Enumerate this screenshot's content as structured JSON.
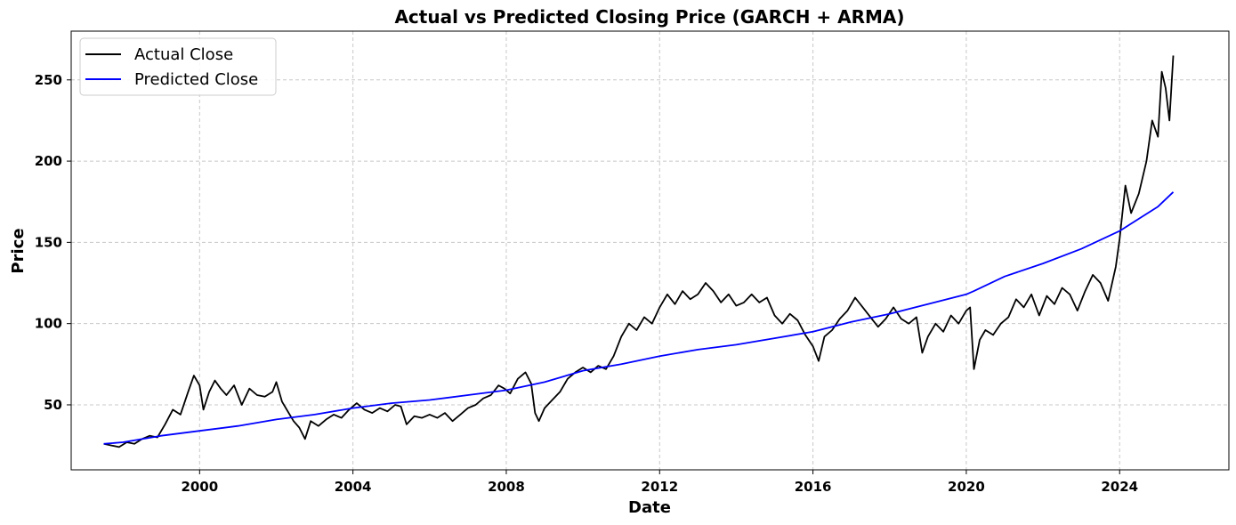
{
  "chart_data": {
    "type": "line",
    "title": "Actual vs Predicted Closing Price (GARCH + ARMA)",
    "xlabel": "Date",
    "ylabel": "Price",
    "xlim": [
      1996.65,
      2026.85
    ],
    "ylim": [
      10,
      280
    ],
    "x_ticks": [
      2000,
      2004,
      2008,
      2012,
      2016,
      2020,
      2024
    ],
    "x_tick_labels": [
      "2000",
      "2004",
      "2008",
      "2012",
      "2016",
      "2020",
      "2024"
    ],
    "y_ticks": [
      50,
      100,
      150,
      200,
      250
    ],
    "y_tick_labels": [
      "50",
      "100",
      "150",
      "200",
      "250"
    ],
    "grid": true,
    "legend_position": "top-left",
    "series": [
      {
        "name": "Actual Close",
        "color": "#000000",
        "points": [
          [
            1997.5,
            26
          ],
          [
            1997.7,
            25
          ],
          [
            1997.9,
            24
          ],
          [
            1998.1,
            27
          ],
          [
            1998.3,
            26
          ],
          [
            1998.5,
            29
          ],
          [
            1998.7,
            31
          ],
          [
            1998.9,
            30
          ],
          [
            1999.1,
            38
          ],
          [
            1999.3,
            47
          ],
          [
            1999.5,
            44
          ],
          [
            1999.7,
            58
          ],
          [
            1999.85,
            68
          ],
          [
            2000.0,
            62
          ],
          [
            2000.1,
            47
          ],
          [
            2000.25,
            58
          ],
          [
            2000.4,
            65
          ],
          [
            2000.55,
            60
          ],
          [
            2000.7,
            56
          ],
          [
            2000.9,
            62
          ],
          [
            2001.1,
            50
          ],
          [
            2001.3,
            60
          ],
          [
            2001.5,
            56
          ],
          [
            2001.7,
            55
          ],
          [
            2001.9,
            58
          ],
          [
            2002.0,
            64
          ],
          [
            2002.15,
            52
          ],
          [
            2002.3,
            46
          ],
          [
            2002.45,
            40
          ],
          [
            2002.6,
            36
          ],
          [
            2002.75,
            29
          ],
          [
            2002.9,
            40
          ],
          [
            2003.1,
            37
          ],
          [
            2003.3,
            41
          ],
          [
            2003.5,
            44
          ],
          [
            2003.7,
            42
          ],
          [
            2003.9,
            47
          ],
          [
            2004.1,
            51
          ],
          [
            2004.3,
            47
          ],
          [
            2004.5,
            45
          ],
          [
            2004.7,
            48
          ],
          [
            2004.9,
            46
          ],
          [
            2005.1,
            50
          ],
          [
            2005.25,
            49
          ],
          [
            2005.4,
            38
          ],
          [
            2005.6,
            43
          ],
          [
            2005.8,
            42
          ],
          [
            2006.0,
            44
          ],
          [
            2006.2,
            42
          ],
          [
            2006.4,
            45
          ],
          [
            2006.6,
            40
          ],
          [
            2006.8,
            44
          ],
          [
            2007.0,
            48
          ],
          [
            2007.2,
            50
          ],
          [
            2007.4,
            54
          ],
          [
            2007.6,
            56
          ],
          [
            2007.8,
            62
          ],
          [
            2007.95,
            60
          ],
          [
            2008.1,
            57
          ],
          [
            2008.3,
            66
          ],
          [
            2008.5,
            70
          ],
          [
            2008.65,
            63
          ],
          [
            2008.75,
            45
          ],
          [
            2008.85,
            40
          ],
          [
            2009.0,
            48
          ],
          [
            2009.2,
            53
          ],
          [
            2009.4,
            58
          ],
          [
            2009.6,
            66
          ],
          [
            2009.8,
            70
          ],
          [
            2010.0,
            73
          ],
          [
            2010.2,
            70
          ],
          [
            2010.4,
            74
          ],
          [
            2010.6,
            72
          ],
          [
            2010.8,
            80
          ],
          [
            2011.0,
            92
          ],
          [
            2011.2,
            100
          ],
          [
            2011.4,
            96
          ],
          [
            2011.6,
            104
          ],
          [
            2011.8,
            100
          ],
          [
            2012.0,
            110
          ],
          [
            2012.2,
            118
          ],
          [
            2012.4,
            112
          ],
          [
            2012.6,
            120
          ],
          [
            2012.8,
            115
          ],
          [
            2013.0,
            118
          ],
          [
            2013.2,
            125
          ],
          [
            2013.4,
            120
          ],
          [
            2013.6,
            113
          ],
          [
            2013.8,
            118
          ],
          [
            2014.0,
            111
          ],
          [
            2014.2,
            113
          ],
          [
            2014.4,
            118
          ],
          [
            2014.6,
            113
          ],
          [
            2014.8,
            116
          ],
          [
            2015.0,
            105
          ],
          [
            2015.2,
            100
          ],
          [
            2015.4,
            106
          ],
          [
            2015.6,
            102
          ],
          [
            2015.8,
            93
          ],
          [
            2016.0,
            86
          ],
          [
            2016.15,
            77
          ],
          [
            2016.3,
            92
          ],
          [
            2016.5,
            96
          ],
          [
            2016.7,
            103
          ],
          [
            2016.9,
            108
          ],
          [
            2017.1,
            116
          ],
          [
            2017.3,
            110
          ],
          [
            2017.5,
            104
          ],
          [
            2017.7,
            98
          ],
          [
            2017.9,
            103
          ],
          [
            2018.1,
            110
          ],
          [
            2018.3,
            103
          ],
          [
            2018.5,
            100
          ],
          [
            2018.7,
            104
          ],
          [
            2018.85,
            82
          ],
          [
            2019.0,
            92
          ],
          [
            2019.2,
            100
          ],
          [
            2019.4,
            95
          ],
          [
            2019.6,
            105
          ],
          [
            2019.8,
            100
          ],
          [
            2020.0,
            108
          ],
          [
            2020.1,
            110
          ],
          [
            2020.2,
            72
          ],
          [
            2020.35,
            90
          ],
          [
            2020.5,
            96
          ],
          [
            2020.7,
            93
          ],
          [
            2020.9,
            100
          ],
          [
            2021.1,
            104
          ],
          [
            2021.3,
            115
          ],
          [
            2021.5,
            110
          ],
          [
            2021.7,
            118
          ],
          [
            2021.9,
            105
          ],
          [
            2022.1,
            117
          ],
          [
            2022.3,
            112
          ],
          [
            2022.5,
            122
          ],
          [
            2022.7,
            118
          ],
          [
            2022.9,
            108
          ],
          [
            2023.1,
            120
          ],
          [
            2023.3,
            130
          ],
          [
            2023.5,
            125
          ],
          [
            2023.7,
            114
          ],
          [
            2023.9,
            135
          ],
          [
            2024.0,
            152
          ],
          [
            2024.15,
            185
          ],
          [
            2024.3,
            168
          ],
          [
            2024.5,
            180
          ],
          [
            2024.7,
            200
          ],
          [
            2024.85,
            225
          ],
          [
            2025.0,
            215
          ],
          [
            2025.1,
            255
          ],
          [
            2025.2,
            245
          ],
          [
            2025.3,
            225
          ],
          [
            2025.4,
            265
          ]
        ]
      },
      {
        "name": "Predicted Close",
        "color": "#0000ff",
        "points": [
          [
            1997.5,
            26
          ],
          [
            1998.0,
            27
          ],
          [
            1999.0,
            31
          ],
          [
            2000.0,
            34
          ],
          [
            2001.0,
            37
          ],
          [
            2002.0,
            41
          ],
          [
            2003.0,
            44
          ],
          [
            2004.0,
            48
          ],
          [
            2005.0,
            51
          ],
          [
            2006.0,
            53
          ],
          [
            2007.0,
            56
          ],
          [
            2008.0,
            59
          ],
          [
            2009.0,
            64
          ],
          [
            2010.0,
            71
          ],
          [
            2011.0,
            75
          ],
          [
            2012.0,
            80
          ],
          [
            2013.0,
            84
          ],
          [
            2014.0,
            87
          ],
          [
            2015.0,
            91
          ],
          [
            2016.0,
            95
          ],
          [
            2017.0,
            101
          ],
          [
            2018.0,
            106
          ],
          [
            2019.0,
            112
          ],
          [
            2020.0,
            118
          ],
          [
            2020.2,
            120
          ],
          [
            2021.0,
            129
          ],
          [
            2022.0,
            137
          ],
          [
            2023.0,
            146
          ],
          [
            2024.0,
            157
          ],
          [
            2025.0,
            172
          ],
          [
            2025.4,
            181
          ]
        ]
      }
    ]
  }
}
